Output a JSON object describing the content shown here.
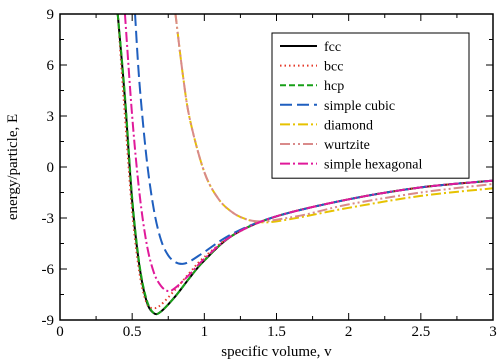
{
  "chart_data": {
    "type": "line",
    "title": "",
    "xlabel": "specific volume, v",
    "ylabel": "energy/particle, E",
    "xlim": [
      0,
      3
    ],
    "ylim": [
      -9,
      9
    ],
    "xticks": [
      0,
      0.5,
      1,
      1.5,
      2,
      2.5,
      3
    ],
    "xtick_labels": [
      "0",
      "0.5",
      "1",
      "1.5",
      "2",
      "2.5",
      "3"
    ],
    "yticks": [
      -9,
      -6,
      -3,
      0,
      3,
      6,
      9
    ],
    "ytick_labels": [
      "-9",
      "-6",
      "-3",
      "0",
      "3",
      "6",
      "9"
    ],
    "grid": false,
    "legend_position": "top-right",
    "series": [
      {
        "name": "fcc",
        "color": "#000000",
        "dash": "solid",
        "points": [
          [
            0.4,
            9
          ],
          [
            0.45,
            4.0
          ],
          [
            0.5,
            -2.0
          ],
          [
            0.55,
            -5.8
          ],
          [
            0.6,
            -7.9
          ],
          [
            0.65,
            -8.6
          ],
          [
            0.7,
            -8.5
          ],
          [
            0.8,
            -7.6
          ],
          [
            0.9,
            -6.5
          ],
          [
            1.0,
            -5.5
          ],
          [
            1.2,
            -4.0
          ],
          [
            1.5,
            -2.9
          ],
          [
            2.0,
            -1.9
          ],
          [
            2.5,
            -1.2
          ],
          [
            3.0,
            -0.8
          ]
        ]
      },
      {
        "name": "bcc",
        "color": "#e53a2a",
        "dash": "dotted",
        "points": [
          [
            0.4,
            9
          ],
          [
            0.45,
            3.0
          ],
          [
            0.5,
            -2.6
          ],
          [
            0.55,
            -6.2
          ],
          [
            0.6,
            -8.0
          ],
          [
            0.65,
            -8.3
          ],
          [
            0.7,
            -8.1
          ],
          [
            0.8,
            -7.2
          ],
          [
            0.9,
            -6.2
          ],
          [
            1.0,
            -5.3
          ],
          [
            1.2,
            -4.0
          ],
          [
            1.5,
            -2.9
          ],
          [
            2.0,
            -1.9
          ],
          [
            2.5,
            -1.2
          ],
          [
            3.0,
            -0.8
          ]
        ]
      },
      {
        "name": "hcp",
        "color": "#18a018",
        "dash": "dashed",
        "points": [
          [
            0.4,
            9
          ],
          [
            0.45,
            4.2
          ],
          [
            0.5,
            -1.8
          ],
          [
            0.55,
            -5.7
          ],
          [
            0.6,
            -7.8
          ],
          [
            0.65,
            -8.6
          ],
          [
            0.7,
            -8.5
          ],
          [
            0.8,
            -7.6
          ],
          [
            0.9,
            -6.5
          ],
          [
            1.0,
            -5.5
          ],
          [
            1.2,
            -4.0
          ],
          [
            1.5,
            -2.9
          ],
          [
            2.0,
            -1.9
          ],
          [
            2.5,
            -1.2
          ],
          [
            3.0,
            -0.8
          ]
        ]
      },
      {
        "name": "simple cubic",
        "color": "#1f5fbf",
        "dash": "long-dash",
        "points": [
          [
            0.52,
            9
          ],
          [
            0.55,
            5.0
          ],
          [
            0.6,
            0.5
          ],
          [
            0.65,
            -2.5
          ],
          [
            0.7,
            -4.3
          ],
          [
            0.75,
            -5.2
          ],
          [
            0.8,
            -5.6
          ],
          [
            0.85,
            -5.7
          ],
          [
            0.9,
            -5.55
          ],
          [
            1.0,
            -5.0
          ],
          [
            1.2,
            -3.9
          ],
          [
            1.5,
            -2.9
          ],
          [
            2.0,
            -1.9
          ],
          [
            2.5,
            -1.2
          ],
          [
            3.0,
            -0.8
          ]
        ]
      },
      {
        "name": "diamond",
        "color": "#e6c200",
        "dash": "dash-dot",
        "points": [
          [
            0.8,
            9
          ],
          [
            0.85,
            5.5
          ],
          [
            0.9,
            2.8
          ],
          [
            1.0,
            -0.3
          ],
          [
            1.1,
            -1.9
          ],
          [
            1.2,
            -2.7
          ],
          [
            1.3,
            -3.1
          ],
          [
            1.4,
            -3.25
          ],
          [
            1.5,
            -3.2
          ],
          [
            1.7,
            -2.9
          ],
          [
            2.0,
            -2.4
          ],
          [
            2.5,
            -1.7
          ],
          [
            3.0,
            -1.25
          ]
        ]
      },
      {
        "name": "wurtzite",
        "color": "#d98a8a",
        "dash": "dash-dot-dot",
        "points": [
          [
            0.8,
            9
          ],
          [
            0.85,
            5.5
          ],
          [
            0.9,
            2.8
          ],
          [
            1.0,
            -0.3
          ],
          [
            1.1,
            -1.9
          ],
          [
            1.2,
            -2.7
          ],
          [
            1.3,
            -3.1
          ],
          [
            1.4,
            -3.2
          ],
          [
            1.5,
            -3.1
          ],
          [
            1.7,
            -2.8
          ],
          [
            2.0,
            -2.2
          ],
          [
            2.5,
            -1.5
          ],
          [
            3.0,
            -1.0
          ]
        ]
      },
      {
        "name": "simple hexagonal",
        "color": "#e0199a",
        "dash": "dash-dot",
        "points": [
          [
            0.45,
            9
          ],
          [
            0.5,
            3.0
          ],
          [
            0.55,
            -1.5
          ],
          [
            0.6,
            -4.5
          ],
          [
            0.65,
            -6.2
          ],
          [
            0.7,
            -7.0
          ],
          [
            0.75,
            -7.3
          ],
          [
            0.8,
            -7.1
          ],
          [
            0.9,
            -6.3
          ],
          [
            1.0,
            -5.4
          ],
          [
            1.2,
            -4.0
          ],
          [
            1.5,
            -2.9
          ],
          [
            2.0,
            -1.9
          ],
          [
            2.5,
            -1.2
          ],
          [
            3.0,
            -0.8
          ]
        ]
      }
    ]
  }
}
